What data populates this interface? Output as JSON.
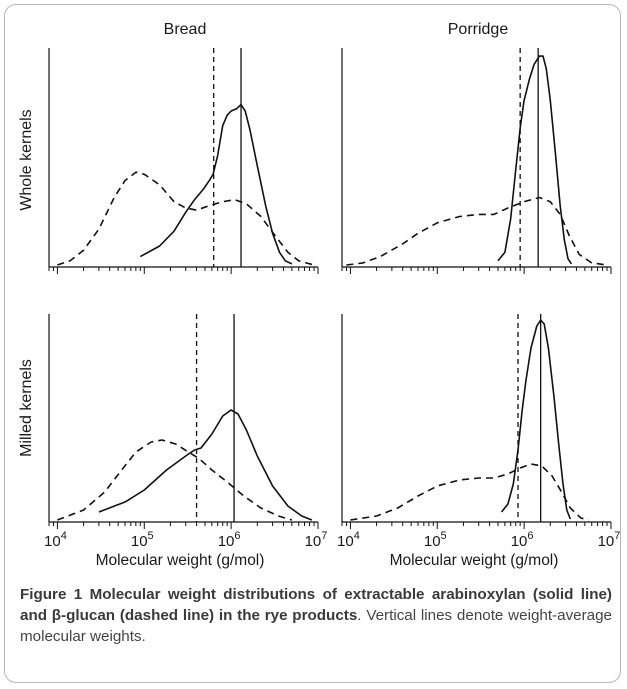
{
  "chart_data": {
    "type": "line",
    "x_axis": {
      "label": "Molecular weight (g/mol)",
      "scale": "log",
      "range": [
        8000,
        10000000
      ],
      "tick_labels": [
        {
          "base": "10",
          "exp": "4"
        },
        {
          "base": "10",
          "exp": "5"
        },
        {
          "base": "10",
          "exp": "6"
        },
        {
          "base": "10",
          "exp": "7"
        }
      ]
    },
    "column_titles": [
      "Bread",
      "Porridge"
    ],
    "row_titles": [
      "Whole kernels",
      "Milled kernels"
    ],
    "panels": [
      {
        "column": "Bread",
        "row": "Whole kernels",
        "series": [
          {
            "style": "solid",
            "points": [
              [
                90000,
                0.04
              ],
              [
                150000,
                0.09
              ],
              [
                220000,
                0.16
              ],
              [
                300000,
                0.25
              ],
              [
                380000,
                0.31
              ],
              [
                480000,
                0.36
              ],
              [
                560000,
                0.4
              ],
              [
                620000,
                0.43
              ],
              [
                700000,
                0.52
              ],
              [
                800000,
                0.66
              ],
              [
                900000,
                0.71
              ],
              [
                1000000,
                0.73
              ],
              [
                1150000,
                0.74
              ],
              [
                1300000,
                0.76
              ],
              [
                1450000,
                0.73
              ],
              [
                1650000,
                0.64
              ],
              [
                2000000,
                0.47
              ],
              [
                2500000,
                0.28
              ],
              [
                3000000,
                0.15
              ],
              [
                3600000,
                0.06
              ],
              [
                4200000,
                0.02
              ],
              [
                5000000,
                0.005
              ]
            ]
          },
          {
            "style": "dashed",
            "points": [
              [
                10000,
                0.0
              ],
              [
                14000,
                0.02
              ],
              [
                20000,
                0.07
              ],
              [
                30000,
                0.17
              ],
              [
                45000,
                0.32
              ],
              [
                60000,
                0.4
              ],
              [
                80000,
                0.44
              ],
              [
                100000,
                0.43
              ],
              [
                150000,
                0.38
              ],
              [
                220000,
                0.3
              ],
              [
                300000,
                0.27
              ],
              [
                400000,
                0.26
              ],
              [
                550000,
                0.28
              ],
              [
                800000,
                0.3
              ],
              [
                1100000,
                0.31
              ],
              [
                1500000,
                0.29
              ],
              [
                2200000,
                0.23
              ],
              [
                3200000,
                0.14
              ],
              [
                4500000,
                0.06
              ],
              [
                6000000,
                0.02
              ],
              [
                9000000,
                0.0
              ]
            ]
          }
        ],
        "reference_lines": [
          {
            "style": "solid",
            "x": 1300000
          },
          {
            "style": "dashed",
            "x": 630000
          }
        ]
      },
      {
        "column": "Porridge",
        "row": "Whole kernels",
        "series": [
          {
            "style": "solid",
            "points": [
              [
                500000,
                0.02
              ],
              [
                600000,
                0.06
              ],
              [
                700000,
                0.22
              ],
              [
                800000,
                0.45
              ],
              [
                900000,
                0.65
              ],
              [
                1000000,
                0.78
              ],
              [
                1150000,
                0.88
              ],
              [
                1300000,
                0.95
              ],
              [
                1500000,
                0.99
              ],
              [
                1650000,
                0.99
              ],
              [
                1800000,
                0.93
              ],
              [
                2000000,
                0.78
              ],
              [
                2300000,
                0.52
              ],
              [
                2600000,
                0.28
              ],
              [
                2900000,
                0.12
              ],
              [
                3200000,
                0.03
              ],
              [
                3500000,
                0.005
              ]
            ]
          },
          {
            "style": "dashed",
            "points": [
              [
                9000,
                0.0
              ],
              [
                14000,
                0.01
              ],
              [
                22000,
                0.04
              ],
              [
                40000,
                0.1
              ],
              [
                60000,
                0.15
              ],
              [
                100000,
                0.2
              ],
              [
                180000,
                0.23
              ],
              [
                300000,
                0.24
              ],
              [
                450000,
                0.24
              ],
              [
                650000,
                0.27
              ],
              [
                1000000,
                0.3
              ],
              [
                1500000,
                0.32
              ],
              [
                2000000,
                0.3
              ],
              [
                2600000,
                0.24
              ],
              [
                3300000,
                0.14
              ],
              [
                4300000,
                0.05
              ],
              [
                6000000,
                0.01
              ],
              [
                9000000,
                0.0
              ]
            ]
          }
        ],
        "reference_lines": [
          {
            "style": "solid",
            "x": 1450000
          },
          {
            "style": "dashed",
            "x": 900000
          }
        ]
      },
      {
        "column": "Bread",
        "row": "Milled kernels",
        "series": [
          {
            "style": "solid",
            "points": [
              [
                30000,
                0.04
              ],
              [
                60000,
                0.09
              ],
              [
                100000,
                0.15
              ],
              [
                180000,
                0.25
              ],
              [
                300000,
                0.32
              ],
              [
                380000,
                0.35
              ],
              [
                450000,
                0.36
              ],
              [
                600000,
                0.43
              ],
              [
                800000,
                0.52
              ],
              [
                1000000,
                0.55
              ],
              [
                1200000,
                0.53
              ],
              [
                1500000,
                0.45
              ],
              [
                2000000,
                0.32
              ],
              [
                3000000,
                0.17
              ],
              [
                4500000,
                0.07
              ],
              [
                6500000,
                0.02
              ],
              [
                8500000,
                0.0
              ]
            ]
          },
          {
            "style": "dashed",
            "points": [
              [
                10000,
                0.0
              ],
              [
                20000,
                0.05
              ],
              [
                35000,
                0.14
              ],
              [
                55000,
                0.25
              ],
              [
                80000,
                0.34
              ],
              [
                120000,
                0.39
              ],
              [
                160000,
                0.4
              ],
              [
                230000,
                0.38
              ],
              [
                320000,
                0.34
              ],
              [
                420000,
                0.31
              ],
              [
                600000,
                0.25
              ],
              [
                900000,
                0.19
              ],
              [
                1400000,
                0.12
              ],
              [
                2200000,
                0.06
              ],
              [
                3500000,
                0.02
              ],
              [
                5000000,
                0.0
              ]
            ]
          }
        ],
        "reference_lines": [
          {
            "style": "solid",
            "x": 1080000
          },
          {
            "style": "dashed",
            "x": 400000
          }
        ]
      },
      {
        "column": "Porridge",
        "row": "Milled kernels",
        "series": [
          {
            "style": "solid",
            "points": [
              [
                550000,
                0.04
              ],
              [
                650000,
                0.08
              ],
              [
                750000,
                0.18
              ],
              [
                850000,
                0.35
              ],
              [
                950000,
                0.55
              ],
              [
                1050000,
                0.7
              ],
              [
                1200000,
                0.86
              ],
              [
                1400000,
                0.97
              ],
              [
                1550000,
                1.0
              ],
              [
                1700000,
                0.98
              ],
              [
                1900000,
                0.86
              ],
              [
                2200000,
                0.62
              ],
              [
                2500000,
                0.38
              ],
              [
                2800000,
                0.18
              ],
              [
                3100000,
                0.05
              ],
              [
                3400000,
                0.005
              ]
            ]
          },
          {
            "style": "dashed",
            "points": [
              [
                10000,
                0.0
              ],
              [
                20000,
                0.02
              ],
              [
                35000,
                0.06
              ],
              [
                60000,
                0.12
              ],
              [
                100000,
                0.17
              ],
              [
                180000,
                0.2
              ],
              [
                300000,
                0.21
              ],
              [
                450000,
                0.21
              ],
              [
                650000,
                0.23
              ],
              [
                900000,
                0.26
              ],
              [
                1200000,
                0.28
              ],
              [
                1600000,
                0.27
              ],
              [
                2100000,
                0.22
              ],
              [
                2700000,
                0.14
              ],
              [
                3400000,
                0.06
              ],
              [
                4500000,
                0.01
              ],
              [
                5500000,
                0.0
              ]
            ]
          }
        ],
        "reference_lines": [
          {
            "style": "solid",
            "x": 1550000
          },
          {
            "style": "dashed",
            "x": 850000
          }
        ]
      }
    ]
  },
  "caption": {
    "label": "Figure 1",
    "title": "Molecular weight distributions of extractable arabinoxylan (solid line) and β-glucan (dashed line) in the rye products",
    "sentence_end": ".",
    "text": "Vertical lines denote weight-average molecular weights."
  }
}
